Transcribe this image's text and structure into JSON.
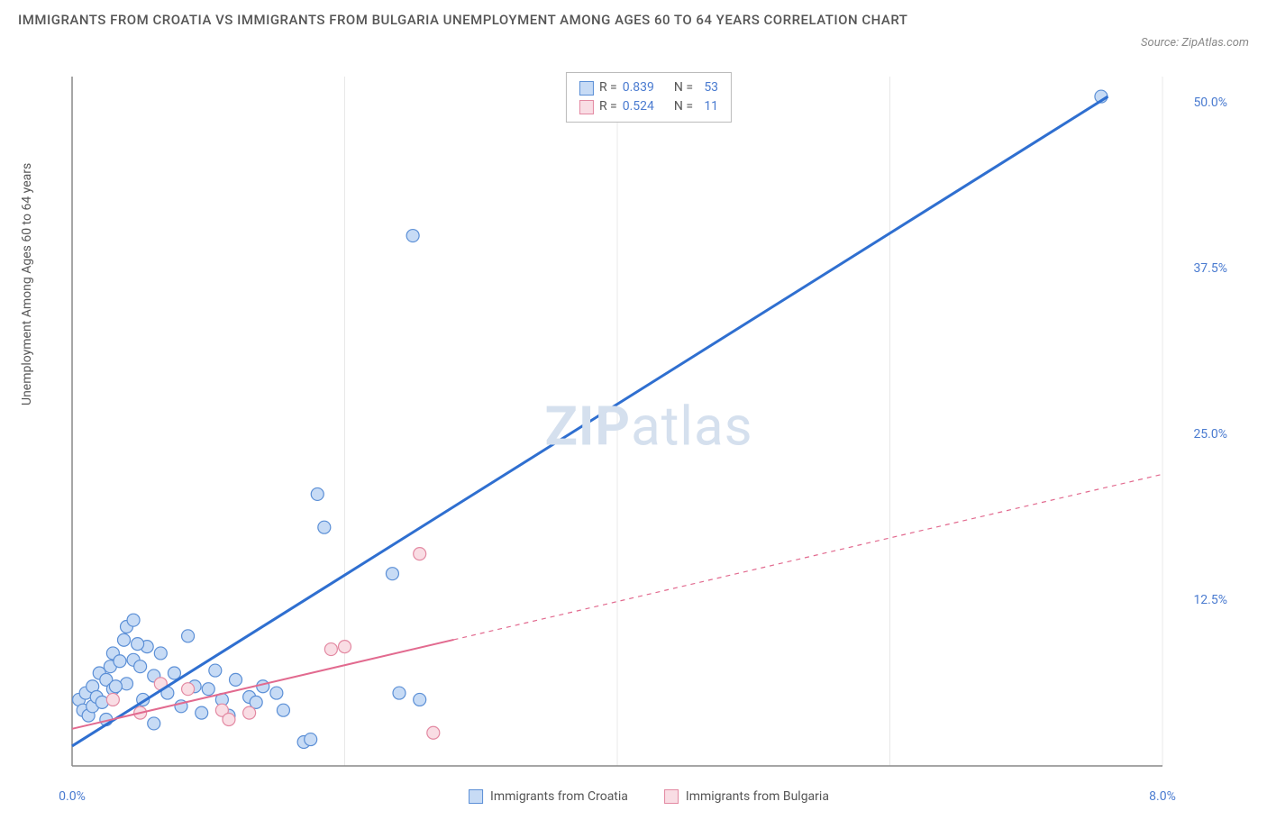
{
  "title": "IMMIGRANTS FROM CROATIA VS IMMIGRANTS FROM BULGARIA UNEMPLOYMENT AMONG AGES 60 TO 64 YEARS CORRELATION CHART",
  "source": "Source: ZipAtlas.com",
  "y_axis_label": "Unemployment Among Ages 60 to 64 years",
  "watermark_strong": "ZIP",
  "watermark_light": "atlas",
  "chart": {
    "type": "scatter",
    "background_color": "#ffffff",
    "plot_border_color": "#d0d0d0",
    "grid_color": "#e8e8e8",
    "x_range": [
      0,
      8
    ],
    "y_range": [
      0,
      52
    ],
    "x_ticks": [
      0,
      2,
      4,
      6,
      8
    ],
    "x_tick_labels": [
      "0.0%",
      "",
      "",
      "",
      "8.0%"
    ],
    "y_ticks": [
      12.5,
      25.0,
      37.5,
      50.0
    ],
    "y_tick_labels": [
      "12.5%",
      "25.0%",
      "37.5%",
      "50.0%"
    ],
    "series": [
      {
        "name": "Immigrants from Croatia",
        "marker_fill": "#c7dbf5",
        "marker_stroke": "#5b8fd6",
        "marker_radius": 7,
        "line_color": "#2f6fd0",
        "line_width": 3,
        "line_dash": "none",
        "R": "0.839",
        "N": "53",
        "trend_start": [
          0,
          1.5
        ],
        "trend_end": [
          7.6,
          50.5
        ],
        "trend_solid_until": 7.6,
        "points": [
          [
            0.05,
            5.0
          ],
          [
            0.08,
            4.2
          ],
          [
            0.1,
            5.5
          ],
          [
            0.12,
            3.8
          ],
          [
            0.15,
            6.0
          ],
          [
            0.15,
            4.5
          ],
          [
            0.18,
            5.2
          ],
          [
            0.2,
            7.0
          ],
          [
            0.22,
            4.8
          ],
          [
            0.25,
            6.5
          ],
          [
            0.25,
            3.5
          ],
          [
            0.28,
            7.5
          ],
          [
            0.3,
            5.8
          ],
          [
            0.3,
            8.5
          ],
          [
            0.35,
            7.9
          ],
          [
            0.38,
            9.5
          ],
          [
            0.4,
            6.2
          ],
          [
            0.4,
            10.5
          ],
          [
            0.45,
            8.0
          ],
          [
            0.45,
            11.0
          ],
          [
            0.5,
            7.5
          ],
          [
            0.52,
            5.0
          ],
          [
            0.55,
            9.0
          ],
          [
            0.6,
            6.8
          ],
          [
            0.6,
            3.2
          ],
          [
            0.65,
            8.5
          ],
          [
            0.7,
            5.5
          ],
          [
            0.75,
            7.0
          ],
          [
            0.8,
            4.5
          ],
          [
            0.85,
            9.8
          ],
          [
            0.9,
            6.0
          ],
          [
            0.95,
            4.0
          ],
          [
            1.0,
            5.8
          ],
          [
            1.05,
            7.2
          ],
          [
            1.1,
            5.0
          ],
          [
            1.15,
            3.8
          ],
          [
            1.2,
            6.5
          ],
          [
            1.3,
            5.2
          ],
          [
            1.35,
            4.8
          ],
          [
            1.4,
            6.0
          ],
          [
            1.5,
            5.5
          ],
          [
            1.55,
            4.2
          ],
          [
            1.7,
            1.8
          ],
          [
            1.75,
            2.0
          ],
          [
            1.8,
            20.5
          ],
          [
            1.85,
            18.0
          ],
          [
            2.35,
            14.5
          ],
          [
            2.5,
            40.0
          ],
          [
            2.4,
            5.5
          ],
          [
            2.55,
            5.0
          ],
          [
            0.32,
            6.0
          ],
          [
            0.48,
            9.2
          ],
          [
            7.55,
            50.5
          ]
        ]
      },
      {
        "name": "Immigrants from Bulgaria",
        "marker_fill": "#f9dde4",
        "marker_stroke": "#e389a2",
        "marker_radius": 7,
        "line_color": "#e26a8f",
        "line_width": 2,
        "line_dash": "4,4",
        "R": "0.524",
        "N": "11",
        "trend_start": [
          0,
          2.8
        ],
        "trend_end": [
          8.0,
          22.0
        ],
        "trend_solid_until": 2.8,
        "points": [
          [
            0.3,
            5.0
          ],
          [
            0.5,
            4.0
          ],
          [
            0.65,
            6.2
          ],
          [
            0.85,
            5.8
          ],
          [
            1.1,
            4.2
          ],
          [
            1.15,
            3.5
          ],
          [
            1.3,
            4.0
          ],
          [
            1.9,
            8.8
          ],
          [
            2.0,
            9.0
          ],
          [
            2.55,
            16.0
          ],
          [
            2.65,
            2.5
          ]
        ]
      }
    ],
    "legend_stats": [
      {
        "swatch_fill": "#c7dbf5",
        "swatch_stroke": "#5b8fd6",
        "r_label": "R = ",
        "r_val": "0.839",
        "n_label": "N = ",
        "n_val": "53"
      },
      {
        "swatch_fill": "#f9dde4",
        "swatch_stroke": "#e389a2",
        "r_label": "R = ",
        "r_val": "0.524",
        "n_label": "N = ",
        "n_val": "11"
      }
    ],
    "bottom_legend": [
      {
        "swatch_fill": "#c7dbf5",
        "swatch_stroke": "#5b8fd6",
        "label": "Immigrants from Croatia"
      },
      {
        "swatch_fill": "#f9dde4",
        "swatch_stroke": "#e389a2",
        "label": "Immigrants from Bulgaria"
      }
    ]
  }
}
